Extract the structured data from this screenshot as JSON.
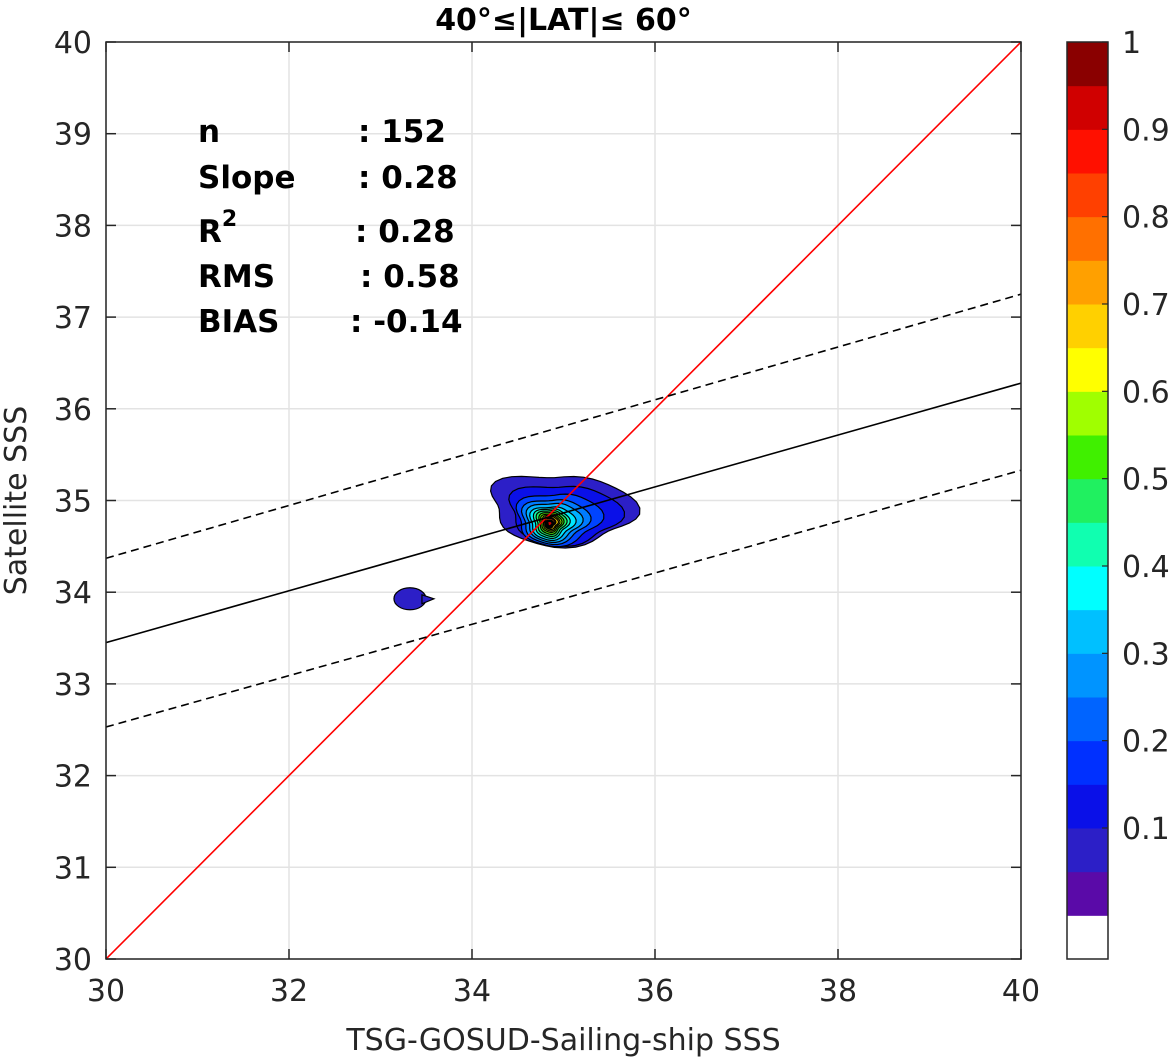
{
  "chart_data": {
    "type": "contour",
    "title": "40°≤|LAT|≤ 60°",
    "xlabel": "TSG-GOSUD-Sailing-ship SSS",
    "ylabel": "Satellite SSS",
    "xlim": [
      30,
      40
    ],
    "ylim": [
      30,
      40
    ],
    "xticks": [
      "30",
      "32",
      "34",
      "36",
      "38",
      "40"
    ],
    "yticks": [
      "30",
      "31",
      "32",
      "33",
      "34",
      "35",
      "36",
      "37",
      "38",
      "39",
      "40"
    ],
    "grid": true,
    "stats": [
      {
        "key": "n",
        "sep": ":",
        "value": "152"
      },
      {
        "key": "Slope",
        "sep": ":",
        "value": "0.28"
      },
      {
        "key": "R",
        "sup": "2",
        "sep": ":",
        "value": "0.28"
      },
      {
        "key": "RMS",
        "sep": ":",
        "value": "0.58"
      },
      {
        "key": "BIAS",
        "sep": ":",
        "value": "-0.14"
      }
    ],
    "lines": [
      {
        "name": "identity",
        "color": "#ff0000",
        "style": "solid",
        "points": [
          [
            30,
            30
          ],
          [
            40,
            40
          ]
        ]
      },
      {
        "name": "fit",
        "color": "#000000",
        "style": "solid",
        "points": [
          [
            30,
            33.45
          ],
          [
            40,
            36.28
          ]
        ]
      },
      {
        "name": "fit-upper",
        "color": "#000000",
        "style": "dashed",
        "points": [
          [
            30,
            34.37
          ],
          [
            40,
            37.25
          ]
        ]
      },
      {
        "name": "fit-lower",
        "color": "#000000",
        "style": "dashed",
        "points": [
          [
            30,
            32.53
          ],
          [
            40,
            35.33
          ]
        ]
      }
    ],
    "density": {
      "main_peak": {
        "x": 34.85,
        "y": 34.75
      },
      "secondary_blob": {
        "x": 33.3,
        "y": 33.95
      }
    },
    "contours": [
      {
        "level": 0.05,
        "color": "#2c1fc7",
        "cx": 34.9,
        "cy": 34.9,
        "rx": 0.7,
        "ry": 0.38,
        "dx": 0.15,
        "dy": -0.05
      },
      {
        "level": 0.15,
        "color": "#0a10e8",
        "cx": 34.95,
        "cy": 34.85,
        "rx": 0.55,
        "ry": 0.32,
        "dx": 0.1,
        "dy": -0.03
      },
      {
        "level": 0.2,
        "color": "#0044ff",
        "cx": 34.9,
        "cy": 34.8,
        "rx": 0.42,
        "ry": 0.28,
        "dx": 0.07,
        "dy": 0.0
      },
      {
        "level": 0.25,
        "color": "#007cff",
        "cx": 34.88,
        "cy": 34.78,
        "rx": 0.34,
        "ry": 0.24,
        "dx": 0.04,
        "dy": 0.0
      },
      {
        "level": 0.3,
        "color": "#00b0ff",
        "cx": 34.87,
        "cy": 34.77,
        "rx": 0.28,
        "ry": 0.21,
        "dx": 0.03,
        "dy": 0.0
      },
      {
        "level": 0.35,
        "color": "#00e8ff",
        "cx": 34.86,
        "cy": 34.76,
        "rx": 0.23,
        "ry": 0.18,
        "dx": 0.02,
        "dy": 0.0
      },
      {
        "level": 0.4,
        "color": "#10ffb0",
        "cx": 34.86,
        "cy": 34.76,
        "rx": 0.19,
        "ry": 0.16,
        "dx": 0.0,
        "dy": 0.0
      },
      {
        "level": 0.45,
        "color": "#20f060",
        "cx": 34.86,
        "cy": 34.76,
        "rx": 0.16,
        "ry": 0.14,
        "dx": 0.0,
        "dy": 0.0
      },
      {
        "level": 0.5,
        "color": "#4cf000",
        "cx": 34.86,
        "cy": 34.76,
        "rx": 0.13,
        "ry": 0.12,
        "dx": 0.0,
        "dy": 0.0
      },
      {
        "level": 0.55,
        "color": "#a0ff00",
        "cx": 34.86,
        "cy": 34.76,
        "rx": 0.11,
        "ry": 0.1,
        "dx": 0.0,
        "dy": 0.0
      },
      {
        "level": 0.6,
        "color": "#f0ff00",
        "cx": 34.86,
        "cy": 34.76,
        "rx": 0.09,
        "ry": 0.085,
        "dx": 0.0,
        "dy": 0.0
      },
      {
        "level": 0.65,
        "color": "#ffd000",
        "cx": 34.86,
        "cy": 34.76,
        "rx": 0.075,
        "ry": 0.07,
        "dx": 0.0,
        "dy": 0.0
      },
      {
        "level": 0.7,
        "color": "#ffa000",
        "cx": 34.85,
        "cy": 34.76,
        "rx": 0.06,
        "ry": 0.058,
        "dx": 0.0,
        "dy": 0.0
      },
      {
        "level": 0.75,
        "color": "#ff7000",
        "cx": 34.85,
        "cy": 34.76,
        "rx": 0.05,
        "ry": 0.048,
        "dx": 0.0,
        "dy": 0.0
      },
      {
        "level": 0.8,
        "color": "#ff4000",
        "cx": 34.85,
        "cy": 34.75,
        "rx": 0.04,
        "ry": 0.04,
        "dx": 0.0,
        "dy": 0.0
      },
      {
        "level": 0.85,
        "color": "#ff1000",
        "cx": 34.85,
        "cy": 34.75,
        "rx": 0.032,
        "ry": 0.032,
        "dx": 0.0,
        "dy": 0.0
      },
      {
        "level": 0.9,
        "color": "#d00000",
        "cx": 34.85,
        "cy": 34.75,
        "rx": 0.022,
        "ry": 0.024,
        "dx": 0.0,
        "dy": 0.0
      }
    ],
    "colorbar": {
      "ticks": [
        "0.1",
        "0.2",
        "0.3",
        "0.4",
        "0.5",
        "0.6",
        "0.7",
        "0.8",
        "0.9",
        "1"
      ],
      "levels": [
        0.05,
        0.1,
        0.15,
        0.2,
        0.25,
        0.3,
        0.35,
        0.4,
        0.45,
        0.5,
        0.55,
        0.6,
        0.65,
        0.7,
        0.75,
        0.8,
        0.85,
        0.9,
        0.95,
        1.0
      ],
      "colors": [
        "#ffffff",
        "#5a0aa8",
        "#2c1fc7",
        "#0a10e8",
        "#0030ff",
        "#0064ff",
        "#0094ff",
        "#00c0ff",
        "#00ffff",
        "#10ffb0",
        "#20f060",
        "#40f000",
        "#a0ff00",
        "#ffff00",
        "#ffd000",
        "#ffa000",
        "#ff7000",
        "#ff4000",
        "#ff1000",
        "#d00000",
        "#8a0000"
      ]
    }
  }
}
